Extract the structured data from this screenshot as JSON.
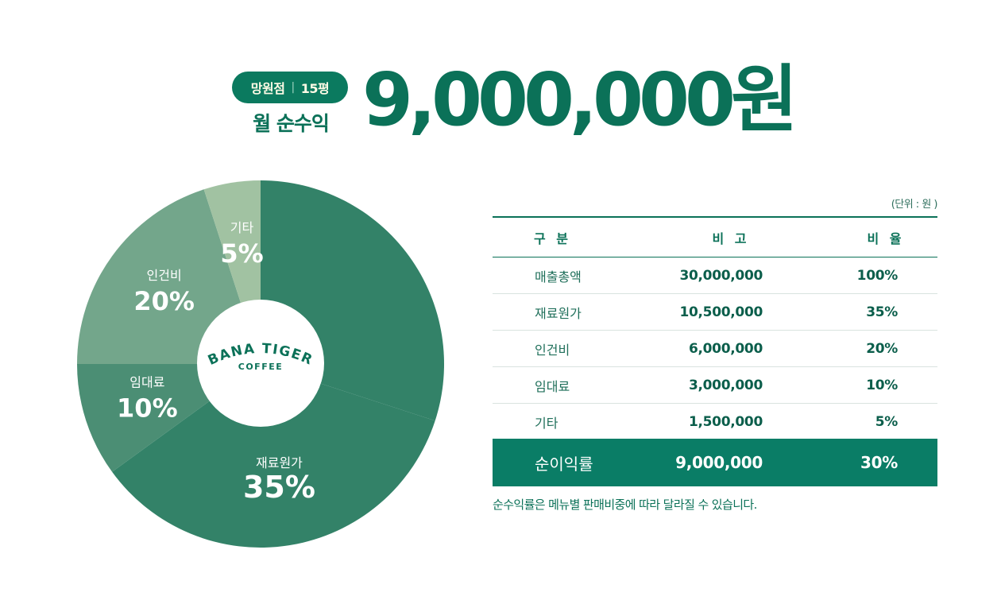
{
  "header": {
    "store_name": "망원점",
    "store_size": "15평",
    "profit_label": "월 순수익",
    "profit_amount": "9,000,000원"
  },
  "logo": {
    "brand": "BANA TIGER",
    "sub": "COFFEE"
  },
  "colors": {
    "primary": "#0b7158",
    "total_bar": "#0a7d66",
    "pie_재료원가": "#338268",
    "pie_임대료": "#4b8e74",
    "pie_인건비": "#73a68b",
    "pie_기타": "#a1c2a2",
    "pie_순이익": "#338268"
  },
  "chart_data": {
    "type": "pie",
    "slices": [
      {
        "label": "",
        "value": 30,
        "value_label": ""
      },
      {
        "label": "재료원가",
        "value": 35,
        "value_label": "35%"
      },
      {
        "label": "임대료",
        "value": 10,
        "value_label": "10%"
      },
      {
        "label": "인건비",
        "value": 20,
        "value_label": "20%"
      },
      {
        "label": "기타",
        "value": 5,
        "value_label": "5%"
      }
    ]
  },
  "table": {
    "unit_note": "(단위 : 원 )",
    "headers": [
      "구 분",
      "비 고",
      "비 율"
    ],
    "rows": [
      {
        "label": "매출총액",
        "amount": "30,000,000",
        "ratio": "100%"
      },
      {
        "label": "재료원가",
        "amount": "10,500,000",
        "ratio": "35%"
      },
      {
        "label": "인건비",
        "amount": "6,000,000",
        "ratio": "20%"
      },
      {
        "label": "임대료",
        "amount": "3,000,000",
        "ratio": "10%"
      },
      {
        "label": "기타",
        "amount": "1,500,000",
        "ratio": "5%"
      }
    ],
    "total": {
      "label": "순이익률",
      "amount": "9,000,000",
      "ratio": "30%"
    },
    "footnote": "순수익률은 메뉴별 판매비중에 따라 달라질 수 있습니다."
  }
}
